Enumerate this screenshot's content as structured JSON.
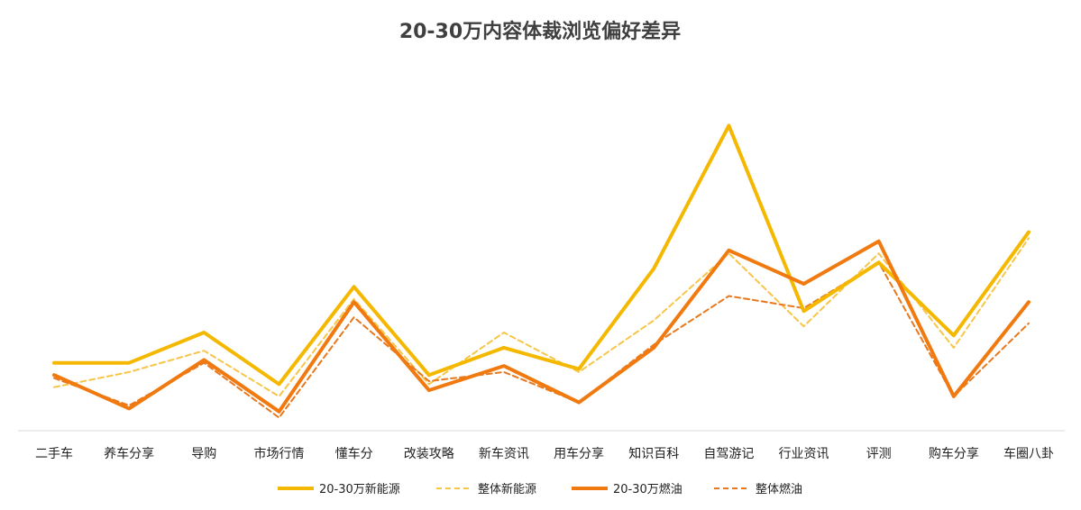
{
  "chart_data": {
    "type": "line",
    "title": "20-30万内容体裁浏览偏好差异",
    "xlabel": "",
    "ylabel": "",
    "ylim": [
      0,
      100
    ],
    "grid": false,
    "legend_position": "bottom",
    "categories": [
      "二手车",
      "养车分享",
      "导购",
      "市场行情",
      "懂车分",
      "改装攻略",
      "新车资讯",
      "用车分享",
      "知识百科",
      "自驾游记",
      "行业资讯",
      "评测",
      "购车分享",
      "车圈八卦"
    ],
    "series": [
      {
        "name": "20-30万新能源",
        "color": "#F5B800",
        "dash": false,
        "width": 4,
        "values": [
          22,
          22,
          32,
          15,
          47,
          18,
          27,
          20,
          53,
          100,
          39,
          55,
          31,
          65
        ]
      },
      {
        "name": "整体新能源",
        "color": "#F7C548",
        "dash": true,
        "width": 2,
        "values": [
          14,
          19,
          26,
          11,
          43,
          15,
          32,
          19,
          36,
          58,
          34,
          58,
          27,
          63
        ]
      },
      {
        "name": "20-30万燃油",
        "color": "#F07A10",
        "dash": false,
        "width": 4,
        "values": [
          18,
          7,
          23,
          6,
          42,
          13,
          21,
          9,
          27,
          59,
          48,
          62,
          11,
          42
        ]
      },
      {
        "name": "整体燃油",
        "color": "#E8781E",
        "dash": true,
        "width": 2,
        "values": [
          17,
          8,
          22,
          4,
          37,
          16,
          19,
          9,
          28,
          44,
          40,
          55,
          11,
          35
        ]
      }
    ]
  }
}
